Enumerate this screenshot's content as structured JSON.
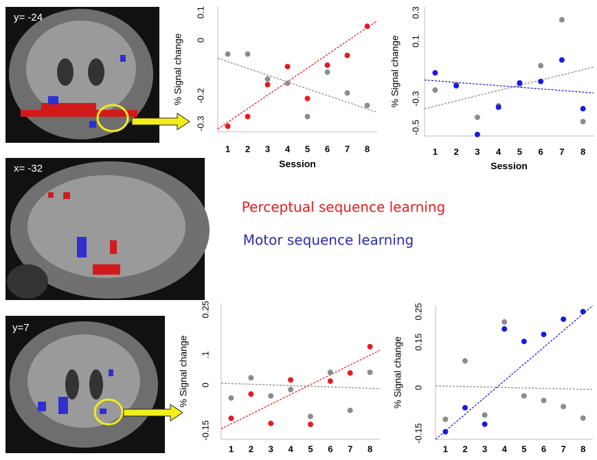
{
  "images": [
    {
      "label": "y= -24"
    },
    {
      "label": "x= -32"
    },
    {
      "label": "y=7"
    }
  ],
  "legend": {
    "perceptual": "Perceptual sequence learning",
    "motor": "Motor sequence learning"
  },
  "chart_data": [
    {
      "type": "scatter",
      "ylabel": "% Signal change",
      "xlabel": "Session",
      "x": [
        1,
        2,
        3,
        4,
        5,
        6,
        7,
        8
      ],
      "xticks": [
        1,
        2,
        3,
        4,
        5,
        6,
        7,
        8
      ],
      "xlim": [
        0.5,
        8.5
      ],
      "ylim": [
        -0.33,
        0.12
      ],
      "yticks": [
        {
          "value": 0.1,
          "label": "0.1"
        },
        0,
        {
          "value": -0.2,
          "label": "-0.2"
        },
        {
          "value": -0.3,
          "label": "-0.3"
        }
      ],
      "grid": false,
      "series": [
        {
          "color": "#8c8c8c",
          "values": [
            -0.05,
            -0.05,
            -0.14,
            -0.155,
            -0.275,
            -0.115,
            -0.19,
            -0.235
          ],
          "fit": [
            -0.065,
            -0.26
          ]
        },
        {
          "color": "#e8191f",
          "values": [
            -0.31,
            -0.275,
            -0.16,
            -0.095,
            -0.21,
            -0.09,
            -0.055,
            0.05
          ],
          "fit": [
            -0.32,
            0.07
          ]
        }
      ]
    },
    {
      "type": "scatter",
      "ylabel": "% Signal change",
      "xlabel": "Session",
      "x": [
        1,
        2,
        3,
        4,
        5,
        6,
        7,
        8
      ],
      "xticks": [
        1,
        2,
        3,
        4,
        5,
        6,
        7,
        8
      ],
      "xlim": [
        0.5,
        8.5
      ],
      "ylim": [
        -0.56,
        0.34
      ],
      "yticks": [
        {
          "value": 0.3,
          "label": "0.3"
        },
        {
          "value": 0.1,
          "label": "0.1"
        },
        {
          "value": -0.3,
          "label": "-0.3"
        },
        {
          "value": -0.5,
          "label": "-0.5"
        }
      ],
      "grid": false,
      "series": [
        {
          "color": "#8c8c8c",
          "values": [
            -0.24,
            -0.2,
            -0.43,
            -0.35,
            -0.2,
            -0.07,
            0.25,
            -0.46
          ],
          "fit": [
            -0.37,
            -0.08
          ]
        },
        {
          "color": "#1a1ae6",
          "values": [
            -0.12,
            -0.21,
            -0.55,
            -0.36,
            -0.19,
            -0.18,
            -0.03,
            -0.37
          ],
          "fit": [
            -0.17,
            -0.26
          ]
        }
      ]
    },
    {
      "type": "scatter",
      "ylabel": "% Signal change",
      "x": [
        1,
        2,
        3,
        4,
        5,
        6,
        7,
        8
      ],
      "xticks": [
        1,
        2,
        3,
        4,
        5,
        6,
        7,
        8
      ],
      "xlim": [
        0.5,
        8.5
      ],
      "ylim": [
        -0.18,
        0.27
      ],
      "yticks": [
        0.25,
        {
          "value": 0.1,
          "label": ".1"
        },
        0,
        -0.15
      ],
      "grid": false,
      "series": [
        {
          "color": "#8c8c8c",
          "values": [
            -0.043,
            0.024,
            -0.036,
            -0.015,
            -0.104,
            0.042,
            -0.084,
            0.042
          ],
          "fit": [
            0.006,
            -0.012
          ]
        },
        {
          "color": "#e8191f",
          "values": [
            -0.11,
            -0.03,
            -0.127,
            0.017,
            -0.13,
            0.013,
            0.04,
            0.127
          ],
          "fit": [
            -0.145,
            0.115
          ]
        }
      ]
    },
    {
      "type": "scatter",
      "ylabel": "% Signal change",
      "x": [
        1,
        2,
        3,
        4,
        5,
        6,
        7,
        8
      ],
      "xticks": [
        1,
        2,
        3,
        4,
        5,
        6,
        7,
        8
      ],
      "xlim": [
        0.5,
        8.5
      ],
      "ylim": [
        -0.17,
        0.27
      ],
      "yticks": [
        0.25,
        0.15,
        0,
        -0.15
      ],
      "grid": false,
      "series": [
        {
          "color": "#8c8c8c",
          "values": [
            -0.104,
            0.088,
            -0.09,
            0.216,
            -0.027,
            -0.042,
            -0.062,
            -0.1
          ],
          "fit": [
            0.006,
            -0.006
          ]
        },
        {
          "color": "#1a1ae6",
          "values": [
            -0.145,
            -0.066,
            -0.12,
            0.193,
            0.152,
            0.175,
            0.225,
            0.25
          ],
          "fit": [
            -0.17,
            0.27
          ]
        }
      ]
    }
  ]
}
